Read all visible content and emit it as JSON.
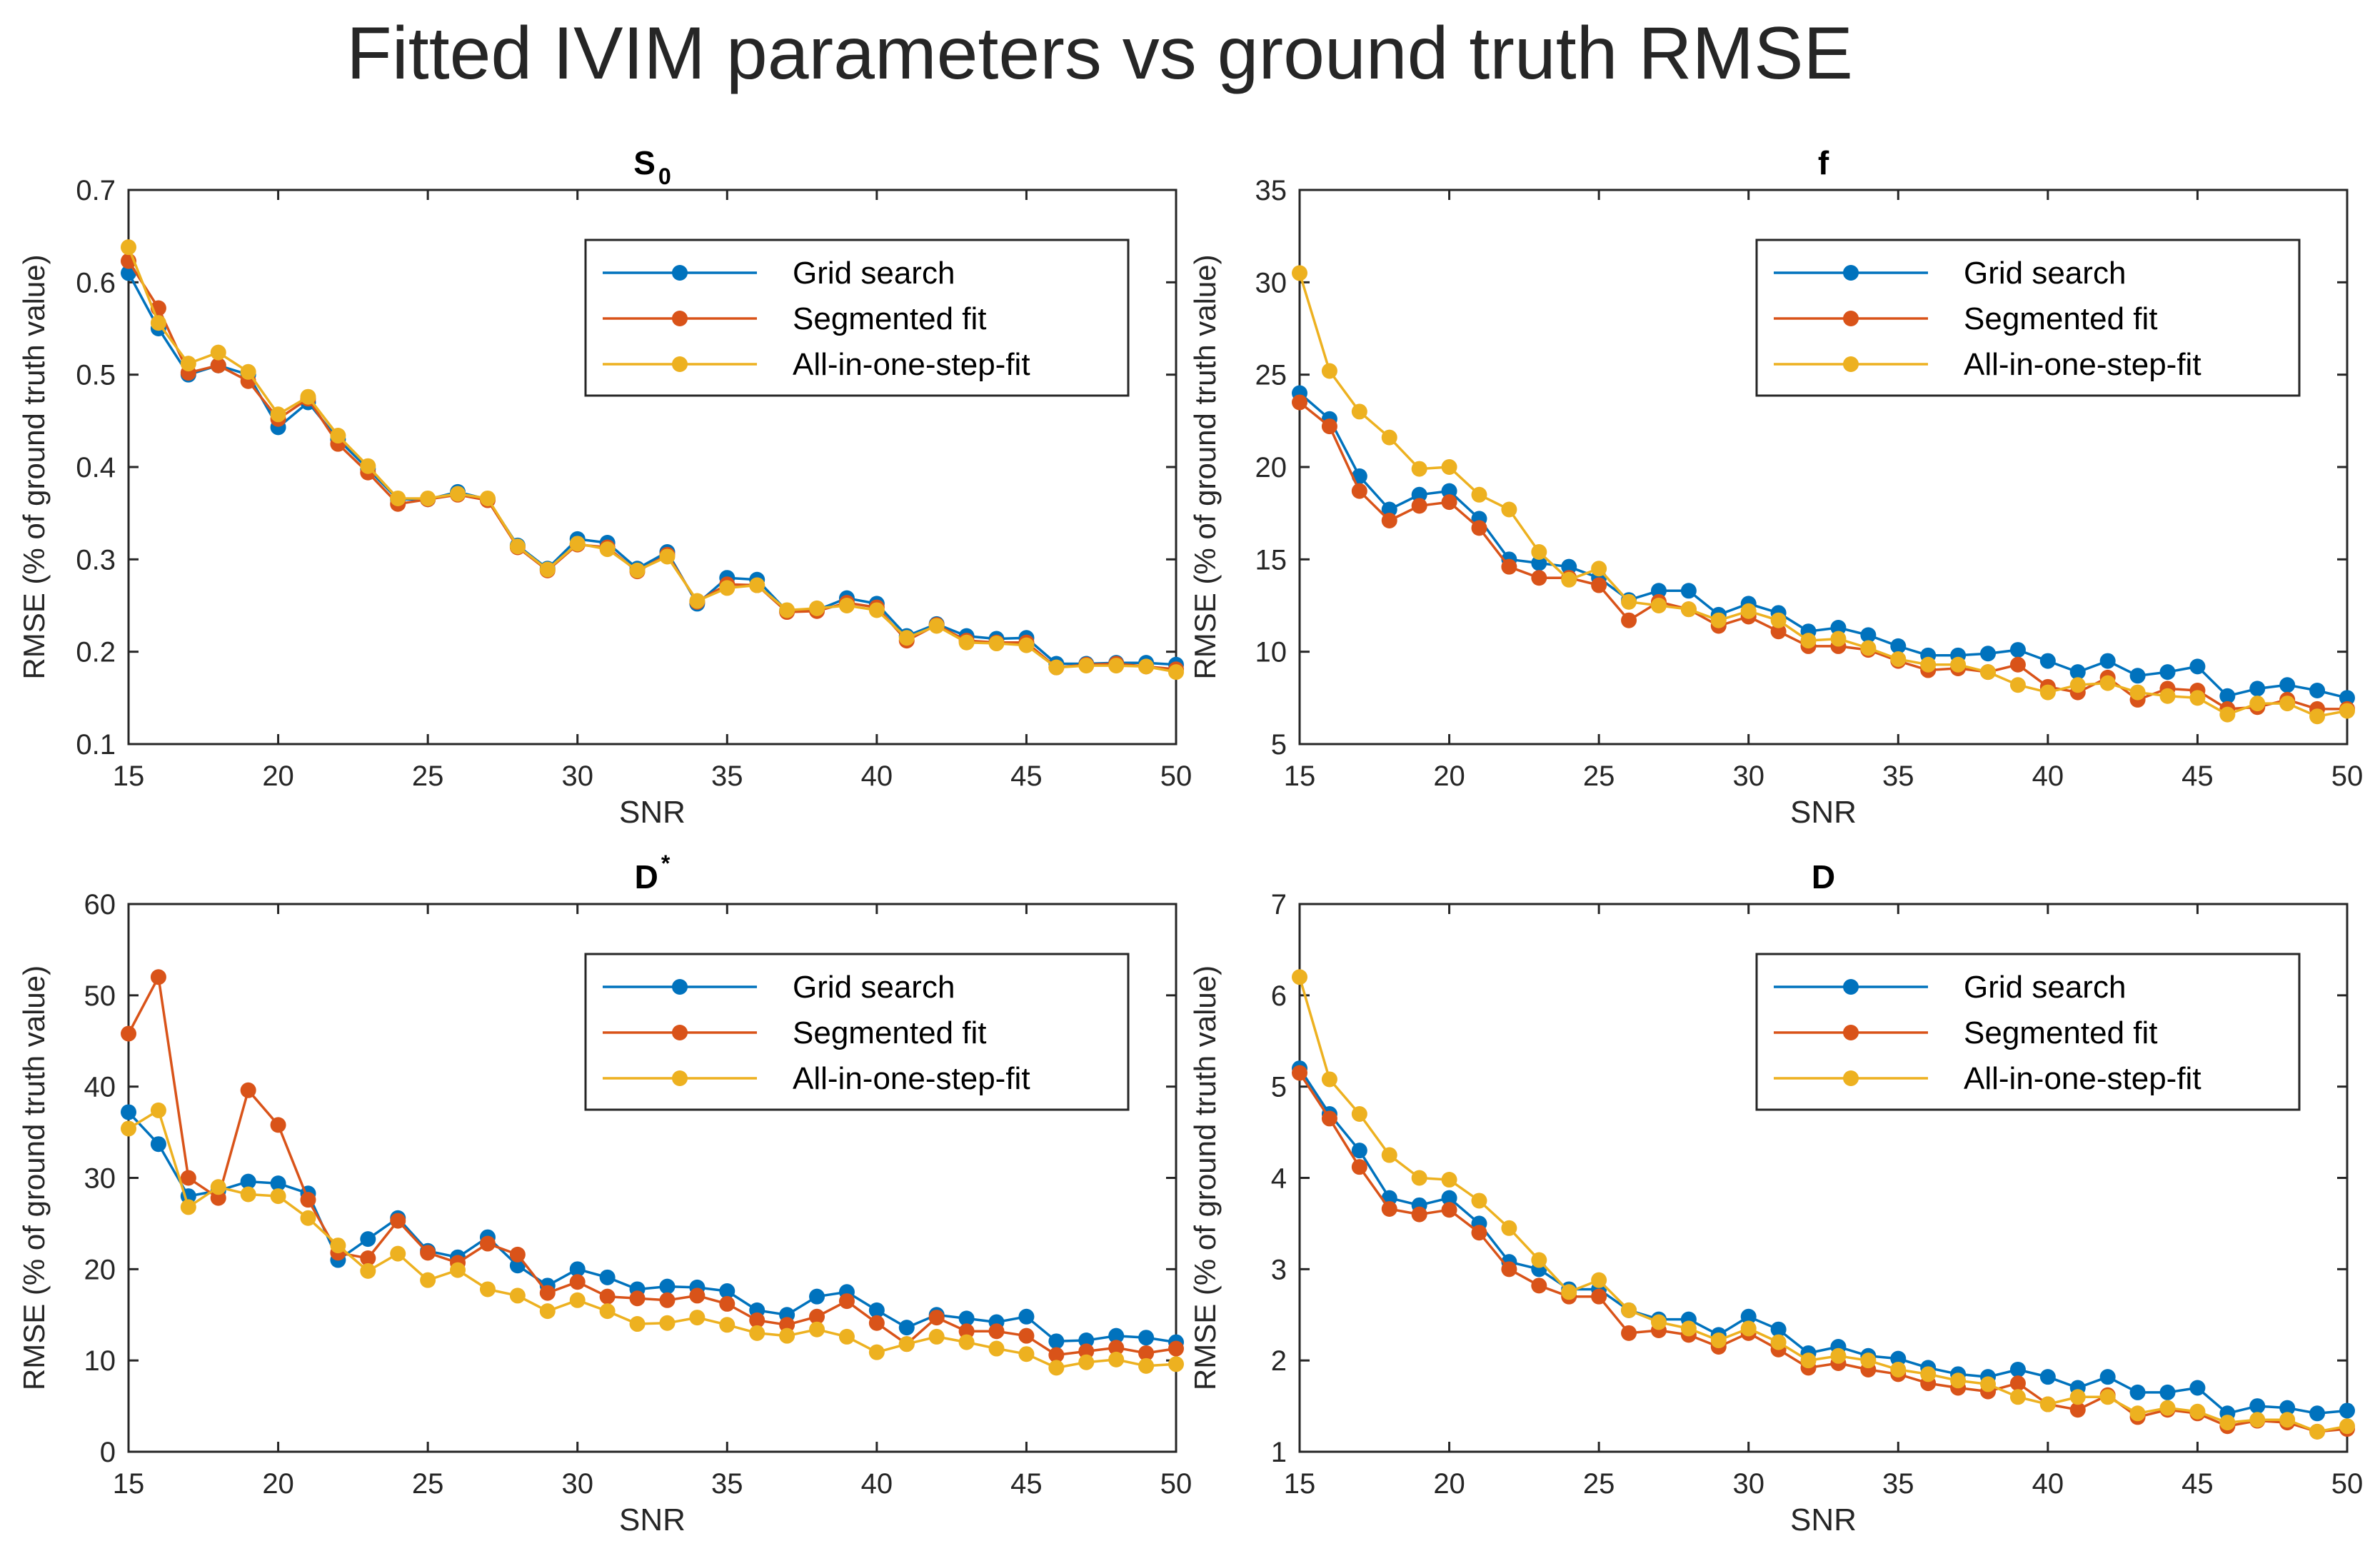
{
  "figure": {
    "title": "Fitted IVIM parameters vs ground truth RMSE"
  },
  "colors": {
    "grid_search": "#0072BD",
    "segmented_fit": "#D95319",
    "all_in_one": "#EDB120",
    "axis": "#262626"
  },
  "chart_data": [
    {
      "type": "line",
      "title": "S",
      "title_subscript": "0",
      "title_superscript": "",
      "xlabel": "SNR",
      "ylabel": "RMSE (% of ground truth value)",
      "xlim": [
        15,
        50
      ],
      "ylim": [
        0.1,
        0.7
      ],
      "xticks": [
        15,
        20,
        25,
        30,
        35,
        40,
        45,
        50
      ],
      "xtick_labels": [
        "15",
        "20",
        "25",
        "30",
        "35",
        "40",
        "45",
        "50"
      ],
      "yticks": [
        0.1,
        0.2,
        0.3,
        0.4,
        0.5,
        0.6,
        0.7
      ],
      "ytick_labels": [
        "0.1",
        "0.2",
        "0.3",
        "0.4",
        "0.5",
        "0.6",
        "0.7"
      ],
      "legend_position": "top-right",
      "x": [
        15,
        16,
        17,
        18,
        19,
        20,
        21,
        22,
        23,
        24,
        25,
        26,
        27,
        28,
        29,
        30,
        31,
        32,
        33,
        34,
        35,
        36,
        37,
        38,
        39,
        40,
        41,
        42,
        43,
        44,
        45,
        46,
        47,
        48,
        49,
        50
      ],
      "series": [
        {
          "name": "Grid search",
          "color_key": "grid_search",
          "values": [
            0.61,
            0.55,
            0.5,
            0.51,
            0.5,
            0.443,
            0.47,
            0.43,
            0.398,
            0.365,
            0.365,
            0.373,
            0.365,
            0.315,
            0.29,
            0.322,
            0.318,
            0.29,
            0.308,
            0.252,
            0.28,
            0.278,
            0.244,
            0.245,
            0.258,
            0.252,
            0.217,
            0.23,
            0.217,
            0.214,
            0.215,
            0.187,
            0.187,
            0.188,
            0.188,
            0.186
          ]
        },
        {
          "name": "Segmented fit",
          "color_key": "segmented_fit",
          "values": [
            0.623,
            0.572,
            0.502,
            0.51,
            0.493,
            0.452,
            0.474,
            0.425,
            0.394,
            0.36,
            0.365,
            0.37,
            0.364,
            0.313,
            0.288,
            0.316,
            0.313,
            0.287,
            0.305,
            0.254,
            0.273,
            0.272,
            0.243,
            0.244,
            0.253,
            0.248,
            0.212,
            0.229,
            0.212,
            0.21,
            0.21,
            0.183,
            0.186,
            0.187,
            0.184,
            0.181
          ]
        },
        {
          "name": "All-in-one-step-fit",
          "color_key": "all_in_one",
          "values": [
            0.638,
            0.556,
            0.512,
            0.524,
            0.503,
            0.457,
            0.476,
            0.434,
            0.401,
            0.366,
            0.366,
            0.371,
            0.366,
            0.314,
            0.289,
            0.317,
            0.311,
            0.288,
            0.303,
            0.255,
            0.269,
            0.272,
            0.245,
            0.247,
            0.25,
            0.245,
            0.215,
            0.228,
            0.21,
            0.209,
            0.207,
            0.183,
            0.185,
            0.185,
            0.184,
            0.178
          ]
        }
      ]
    },
    {
      "type": "line",
      "title": "f",
      "title_subscript": "",
      "title_superscript": "",
      "xlabel": "SNR",
      "ylabel": "RMSE (% of ground truth value)",
      "xlim": [
        15,
        50
      ],
      "ylim": [
        5,
        35
      ],
      "xticks": [
        15,
        20,
        25,
        30,
        35,
        40,
        45,
        50
      ],
      "xtick_labels": [
        "15",
        "20",
        "25",
        "30",
        "35",
        "40",
        "45",
        "50"
      ],
      "yticks": [
        5,
        10,
        15,
        20,
        25,
        30,
        35
      ],
      "ytick_labels": [
        "5",
        "10",
        "15",
        "20",
        "25",
        "30",
        "35"
      ],
      "legend_position": "top-right",
      "x": [
        15,
        16,
        17,
        18,
        19,
        20,
        21,
        22,
        23,
        24,
        25,
        26,
        27,
        28,
        29,
        30,
        31,
        32,
        33,
        34,
        35,
        36,
        37,
        38,
        39,
        40,
        41,
        42,
        43,
        44,
        45,
        46,
        47,
        48,
        49,
        50
      ],
      "series": [
        {
          "name": "Grid search",
          "color_key": "grid_search",
          "values": [
            24.0,
            22.6,
            19.5,
            17.7,
            18.5,
            18.7,
            17.2,
            15.0,
            14.8,
            14.6,
            14.0,
            12.8,
            13.3,
            13.3,
            12.0,
            12.6,
            12.1,
            11.1,
            11.3,
            10.9,
            10.3,
            9.8,
            9.8,
            9.9,
            10.1,
            9.5,
            8.9,
            9.5,
            8.7,
            8.9,
            9.2,
            7.6,
            8.0,
            8.2,
            7.9,
            7.5
          ]
        },
        {
          "name": "Segmented fit",
          "color_key": "segmented_fit",
          "values": [
            23.5,
            22.2,
            18.7,
            17.1,
            17.9,
            18.1,
            16.7,
            14.6,
            14.0,
            14.0,
            13.6,
            11.7,
            12.7,
            12.3,
            11.4,
            11.9,
            11.1,
            10.3,
            10.3,
            10.1,
            9.5,
            9.0,
            9.1,
            8.9,
            9.3,
            8.1,
            7.8,
            8.6,
            7.4,
            8.0,
            7.9,
            6.9,
            7.0,
            7.4,
            6.9,
            6.9
          ]
        },
        {
          "name": "All-in-one-step-fit",
          "color_key": "all_in_one",
          "values": [
            30.5,
            25.2,
            23.0,
            21.6,
            19.9,
            20.0,
            18.5,
            17.7,
            15.4,
            13.9,
            14.5,
            12.7,
            12.5,
            12.3,
            11.7,
            12.2,
            11.7,
            10.6,
            10.7,
            10.2,
            9.6,
            9.3,
            9.3,
            8.9,
            8.2,
            7.8,
            8.2,
            8.3,
            7.8,
            7.6,
            7.5,
            6.6,
            7.2,
            7.2,
            6.5,
            6.8
          ]
        }
      ]
    },
    {
      "type": "line",
      "title": "D",
      "title_subscript": "",
      "title_superscript": "*",
      "xlabel": "SNR",
      "ylabel": "RMSE (% of ground truth value)",
      "xlim": [
        15,
        50
      ],
      "ylim": [
        0,
        60
      ],
      "xticks": [
        15,
        20,
        25,
        30,
        35,
        40,
        45,
        50
      ],
      "xtick_labels": [
        "15",
        "20",
        "25",
        "30",
        "35",
        "40",
        "45",
        "50"
      ],
      "yticks": [
        0,
        10,
        20,
        30,
        40,
        50,
        60
      ],
      "ytick_labels": [
        "0",
        "10",
        "20",
        "30",
        "40",
        "50",
        "60"
      ],
      "legend_position": "top-right",
      "x": [
        15,
        16,
        17,
        18,
        19,
        20,
        21,
        22,
        23,
        24,
        25,
        26,
        27,
        28,
        29,
        30,
        31,
        32,
        33,
        34,
        35,
        36,
        37,
        38,
        39,
        40,
        41,
        42,
        43,
        44,
        45,
        46,
        47,
        48,
        49,
        50
      ],
      "series": [
        {
          "name": "Grid search",
          "color_key": "grid_search",
          "values": [
            37.2,
            33.7,
            28.0,
            28.6,
            29.6,
            29.4,
            28.3,
            21.0,
            23.3,
            25.6,
            22.0,
            21.3,
            23.5,
            20.4,
            18.2,
            20.0,
            19.1,
            17.8,
            18.1,
            18.0,
            17.6,
            15.5,
            15.0,
            17.0,
            17.5,
            15.5,
            13.6,
            15.0,
            14.6,
            14.2,
            14.8,
            12.1,
            12.2,
            12.7,
            12.5,
            12.0
          ]
        },
        {
          "name": "Segmented fit",
          "color_key": "segmented_fit",
          "values": [
            45.8,
            52.0,
            30.0,
            27.8,
            39.6,
            35.8,
            27.6,
            21.8,
            21.2,
            25.3,
            21.8,
            20.7,
            22.8,
            21.6,
            17.4,
            18.6,
            17.0,
            16.8,
            16.6,
            17.1,
            16.2,
            14.4,
            13.9,
            14.8,
            16.5,
            14.1,
            11.8,
            14.7,
            13.2,
            13.2,
            12.7,
            10.6,
            11.0,
            11.4,
            10.8,
            11.3
          ]
        },
        {
          "name": "All-in-one-step-fit",
          "color_key": "all_in_one",
          "values": [
            35.4,
            37.4,
            26.8,
            29.0,
            28.2,
            28.0,
            25.6,
            22.6,
            19.8,
            21.7,
            18.8,
            19.9,
            17.8,
            17.1,
            15.4,
            16.6,
            15.4,
            14.0,
            14.1,
            14.7,
            13.9,
            13.0,
            12.7,
            13.4,
            12.6,
            10.9,
            11.8,
            12.6,
            12.0,
            11.3,
            10.7,
            9.2,
            9.8,
            10.1,
            9.4,
            9.6
          ]
        }
      ]
    },
    {
      "type": "line",
      "title": "D",
      "title_subscript": "",
      "title_superscript": "",
      "xlabel": "SNR",
      "ylabel": "RMSE (% of ground truth value)",
      "xlim": [
        15,
        50
      ],
      "ylim": [
        1,
        7
      ],
      "xticks": [
        15,
        20,
        25,
        30,
        35,
        40,
        45,
        50
      ],
      "xtick_labels": [
        "15",
        "20",
        "25",
        "30",
        "35",
        "40",
        "45",
        "50"
      ],
      "yticks": [
        1,
        2,
        3,
        4,
        5,
        6,
        7
      ],
      "ytick_labels": [
        "1",
        "2",
        "3",
        "4",
        "5",
        "6",
        "7"
      ],
      "legend_position": "top-right",
      "x": [
        15,
        16,
        17,
        18,
        19,
        20,
        21,
        22,
        23,
        24,
        25,
        26,
        27,
        28,
        29,
        30,
        31,
        32,
        33,
        34,
        35,
        36,
        37,
        38,
        39,
        40,
        41,
        42,
        43,
        44,
        45,
        46,
        47,
        48,
        49,
        50
      ],
      "series": [
        {
          "name": "Grid search",
          "color_key": "grid_search",
          "values": [
            5.2,
            4.7,
            4.3,
            3.78,
            3.7,
            3.78,
            3.5,
            3.08,
            3.0,
            2.78,
            2.78,
            2.55,
            2.45,
            2.45,
            2.28,
            2.48,
            2.34,
            2.08,
            2.15,
            2.05,
            2.02,
            1.92,
            1.85,
            1.82,
            1.9,
            1.82,
            1.7,
            1.82,
            1.65,
            1.65,
            1.7,
            1.42,
            1.5,
            1.48,
            1.42,
            1.45
          ]
        },
        {
          "name": "Segmented fit",
          "color_key": "segmented_fit",
          "values": [
            5.15,
            4.65,
            4.12,
            3.66,
            3.6,
            3.65,
            3.4,
            3.0,
            2.82,
            2.7,
            2.7,
            2.3,
            2.33,
            2.28,
            2.15,
            2.3,
            2.12,
            1.92,
            1.97,
            1.9,
            1.85,
            1.75,
            1.7,
            1.66,
            1.75,
            1.52,
            1.46,
            1.62,
            1.38,
            1.46,
            1.42,
            1.28,
            1.34,
            1.32,
            1.22,
            1.25
          ]
        },
        {
          "name": "All-in-one-step-fit",
          "color_key": "all_in_one",
          "values": [
            6.2,
            5.08,
            4.7,
            4.25,
            4.0,
            3.98,
            3.75,
            3.45,
            3.1,
            2.75,
            2.88,
            2.55,
            2.42,
            2.35,
            2.22,
            2.35,
            2.2,
            2.0,
            2.05,
            2.0,
            1.9,
            1.85,
            1.78,
            1.74,
            1.6,
            1.52,
            1.6,
            1.6,
            1.42,
            1.48,
            1.44,
            1.32,
            1.35,
            1.35,
            1.22,
            1.28
          ]
        }
      ]
    }
  ]
}
